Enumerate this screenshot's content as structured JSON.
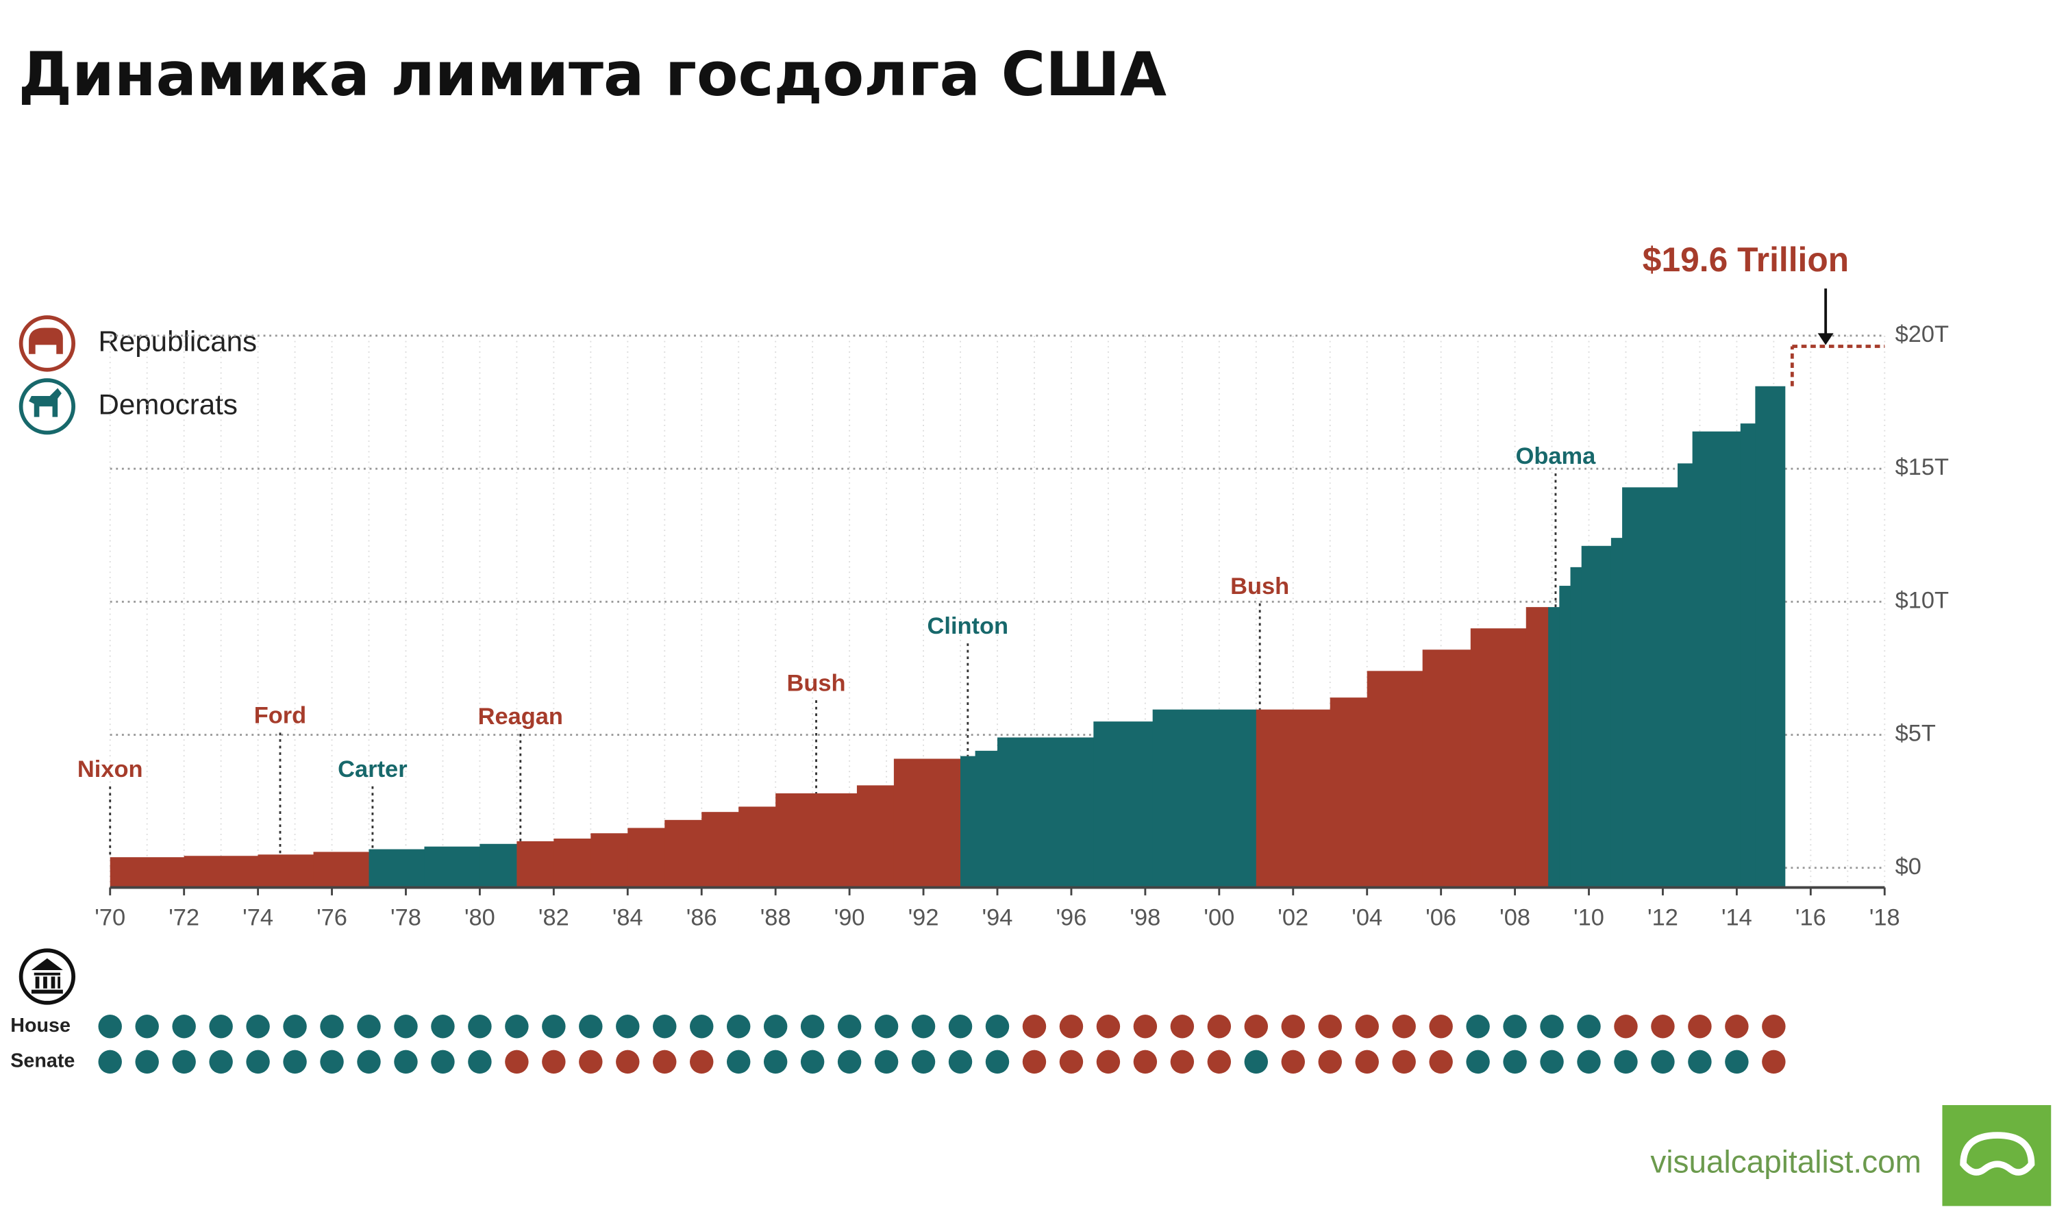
{
  "chart_data": {
    "type": "step",
    "title": "Динамика лимита госдолга США",
    "legend": [
      {
        "name": "Republicans",
        "color": "#a63c2b"
      },
      {
        "name": "Democrats",
        "color": "#17686b"
      }
    ],
    "steps": {
      "x": [
        1970,
        1972,
        1974,
        1975.5,
        1977,
        1978.5,
        1980,
        1981,
        1982,
        1983,
        1984,
        1985,
        1986,
        1987,
        1988,
        1990.2,
        1991.2,
        1993,
        1993.4,
        1994,
        1996.6,
        1998.2,
        2001,
        2003,
        2004,
        2005.5,
        2006.8,
        2008.3,
        2008.9,
        2009.2,
        2009.5,
        2009.8,
        2010.6,
        2010.9,
        2012.4,
        2012.8,
        2014.1,
        2014.5,
        2015.3
      ],
      "values": [
        0.4,
        0.45,
        0.5,
        0.6,
        0.7,
        0.8,
        0.9,
        1.0,
        1.1,
        1.3,
        1.5,
        1.8,
        2.1,
        2.3,
        2.8,
        3.1,
        4.1,
        4.2,
        4.4,
        4.9,
        5.5,
        5.95,
        5.95,
        6.4,
        7.4,
        8.2,
        9.0,
        9.8,
        9.8,
        10.6,
        11.3,
        12.1,
        12.4,
        14.3,
        15.2,
        16.4,
        16.7,
        18.1
      ],
      "party": [
        "Republicans",
        "Republicans",
        "Republicans",
        "Republicans",
        "Democrats",
        "Democrats",
        "Democrats",
        "Republicans",
        "Republicans",
        "Republicans",
        "Republicans",
        "Republicans",
        "Republicans",
        "Republicans",
        "Republicans",
        "Republicans",
        "Republicans",
        "Democrats",
        "Democrats",
        "Democrats",
        "Democrats",
        "Democrats",
        "Republicans",
        "Republicans",
        "Republicans",
        "Republicans",
        "Republicans",
        "Republicans",
        "Democrats",
        "Democrats",
        "Democrats",
        "Democrats",
        "Democrats",
        "Democrats",
        "Democrats",
        "Democrats",
        "Democrats",
        "Democrats"
      ]
    },
    "projection": {
      "label": "$19.6 Trillion",
      "value": 19.6,
      "x": [
        2015.5,
        2018
      ]
    },
    "presidents": [
      {
        "name": "Nixon",
        "x": 1970,
        "party": "Republicans"
      },
      {
        "name": "Ford",
        "x": 1974.6,
        "party": "Republicans"
      },
      {
        "name": "Carter",
        "x": 1977.1,
        "party": "Democrats"
      },
      {
        "name": "Reagan",
        "x": 1981.1,
        "party": "Republicans"
      },
      {
        "name": "Bush",
        "x": 1989.1,
        "party": "Republicans"
      },
      {
        "name": "Clinton",
        "x": 1993.2,
        "party": "Democrats"
      },
      {
        "name": "Bush",
        "x": 2001.1,
        "party": "Republicans"
      },
      {
        "name": "Obama",
        "x": 2009.1,
        "party": "Democrats"
      }
    ],
    "congress": {
      "years": [
        1970,
        1971,
        1972,
        1973,
        1974,
        1975,
        1976,
        1977,
        1978,
        1979,
        1980,
        1981,
        1982,
        1983,
        1984,
        1985,
        1986,
        1987,
        1988,
        1989,
        1990,
        1991,
        1992,
        1993,
        1994,
        1995,
        1996,
        1997,
        1998,
        1999,
        2000,
        2001,
        2002,
        2003,
        2004,
        2005,
        2006,
        2007,
        2008,
        2009,
        2010,
        2011,
        2012,
        2013,
        2014,
        2015
      ],
      "rows": [
        {
          "label": "House",
          "party": [
            "Democrats",
            "Democrats",
            "Democrats",
            "Democrats",
            "Democrats",
            "Democrats",
            "Democrats",
            "Democrats",
            "Democrats",
            "Democrats",
            "Democrats",
            "Democrats",
            "Democrats",
            "Democrats",
            "Democrats",
            "Democrats",
            "Democrats",
            "Democrats",
            "Democrats",
            "Democrats",
            "Democrats",
            "Democrats",
            "Democrats",
            "Democrats",
            "Democrats",
            "Republicans",
            "Republicans",
            "Republicans",
            "Republicans",
            "Republicans",
            "Republicans",
            "Republicans",
            "Republicans",
            "Republicans",
            "Republicans",
            "Republicans",
            "Republicans",
            "Democrats",
            "Democrats",
            "Democrats",
            "Democrats",
            "Republicans",
            "Republicans",
            "Republicans",
            "Republicans",
            "Republicans"
          ]
        },
        {
          "label": "Senate",
          "party": [
            "Democrats",
            "Democrats",
            "Democrats",
            "Democrats",
            "Democrats",
            "Democrats",
            "Democrats",
            "Democrats",
            "Democrats",
            "Democrats",
            "Democrats",
            "Republicans",
            "Republicans",
            "Republicans",
            "Republicans",
            "Republicans",
            "Republicans",
            "Democrats",
            "Democrats",
            "Democrats",
            "Democrats",
            "Democrats",
            "Democrats",
            "Democrats",
            "Democrats",
            "Republicans",
            "Republicans",
            "Republicans",
            "Republicans",
            "Republicans",
            "Republicans",
            "Democrats",
            "Republicans",
            "Republicans",
            "Republicans",
            "Republicans",
            "Republicans",
            "Democrats",
            "Democrats",
            "Democrats",
            "Democrats",
            "Democrats",
            "Democrats",
            "Democrats",
            "Democrats",
            "Republicans"
          ]
        }
      ]
    },
    "xlim": [
      1970,
      2018
    ],
    "xticks": [
      {
        "value": 1970,
        "label": "'70"
      },
      {
        "value": 1972,
        "label": "'72"
      },
      {
        "value": 1974,
        "label": "'74"
      },
      {
        "value": 1976,
        "label": "'76"
      },
      {
        "value": 1978,
        "label": "'78"
      },
      {
        "value": 1980,
        "label": "'80"
      },
      {
        "value": 1982,
        "label": "'82"
      },
      {
        "value": 1984,
        "label": "'84"
      },
      {
        "value": 1986,
        "label": "'86"
      },
      {
        "value": 1988,
        "label": "'88"
      },
      {
        "value": 1990,
        "label": "'90"
      },
      {
        "value": 1992,
        "label": "'92"
      },
      {
        "value": 1994,
        "label": "'94"
      },
      {
        "value": 1996,
        "label": "'96"
      },
      {
        "value": 1998,
        "label": "'98"
      },
      {
        "value": 2000,
        "label": "'00"
      },
      {
        "value": 2002,
        "label": "'02"
      },
      {
        "value": 2004,
        "label": "'04"
      },
      {
        "value": 2006,
        "label": "'06"
      },
      {
        "value": 2008,
        "label": "'08"
      },
      {
        "value": 2010,
        "label": "'10"
      },
      {
        "value": 2012,
        "label": "'12"
      },
      {
        "value": 2014,
        "label": "'14"
      },
      {
        "value": 2016,
        "label": "'16"
      },
      {
        "value": 2018,
        "label": "'18"
      }
    ],
    "ylim": [
      0,
      20
    ],
    "yticks": [
      {
        "value": 0,
        "label": "$0"
      },
      {
        "value": 5,
        "label": "$5T"
      },
      {
        "value": 10,
        "label": "$10T"
      },
      {
        "value": 15,
        "label": "$15T"
      },
      {
        "value": 20,
        "label": "$20T"
      }
    ],
    "grid": true,
    "source": "visualcapitalist.com"
  }
}
